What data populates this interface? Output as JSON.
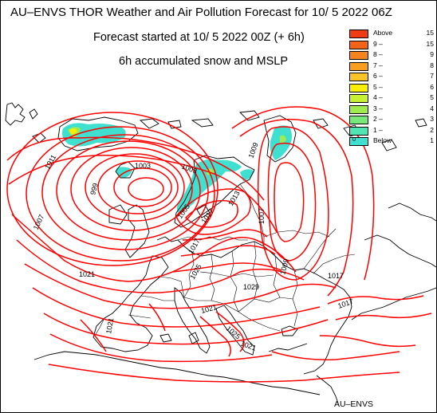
{
  "header": {
    "title": "AU–ENVS THOR Weather and Air Pollution Forecast for 10/ 5 2022  06Z",
    "started": "Forecast started at 10/ 5 2022  00Z (+ 6h)",
    "product": "6h accumulated snow and MSLP"
  },
  "legend": {
    "items": [
      {
        "a": "Above",
        "b": "15",
        "color": "#f03c14"
      },
      {
        "a": "9 –",
        "b": "15",
        "color": "#f46418"
      },
      {
        "a": "8 –",
        "b": "9",
        "color": "#f5841c"
      },
      {
        "a": "7 –",
        "b": "8",
        "color": "#f7a020"
      },
      {
        "a": "6 –",
        "b": "7",
        "color": "#f8c428"
      },
      {
        "a": "5 –",
        "b": "6",
        "color": "#f8f000"
      },
      {
        "a": "4 –",
        "b": "5",
        "color": "#c8f032"
      },
      {
        "a": "3 –",
        "b": "4",
        "color": "#a0ec50"
      },
      {
        "a": "2 –",
        "b": "3",
        "color": "#78e878"
      },
      {
        "a": "1 –",
        "b": "2",
        "color": "#50e6b4"
      },
      {
        "a": "Below",
        "b": "1",
        "color": "#40e0d0"
      }
    ],
    "below_marker": "0"
  },
  "isobar_labels": [
    "1011",
    "1003",
    "999",
    "1003",
    "1007",
    "1005",
    "1017",
    "1013",
    "1009",
    "1007",
    "1009",
    "1021",
    "1017",
    "1017",
    "1025",
    "1021",
    "1029",
    "1021",
    "1017",
    "1025",
    "1021"
  ],
  "credit": "AU–ENVS",
  "colors": {
    "isobar": "#ff0000",
    "coast": "#000000",
    "snow": "#40e0d0"
  }
}
